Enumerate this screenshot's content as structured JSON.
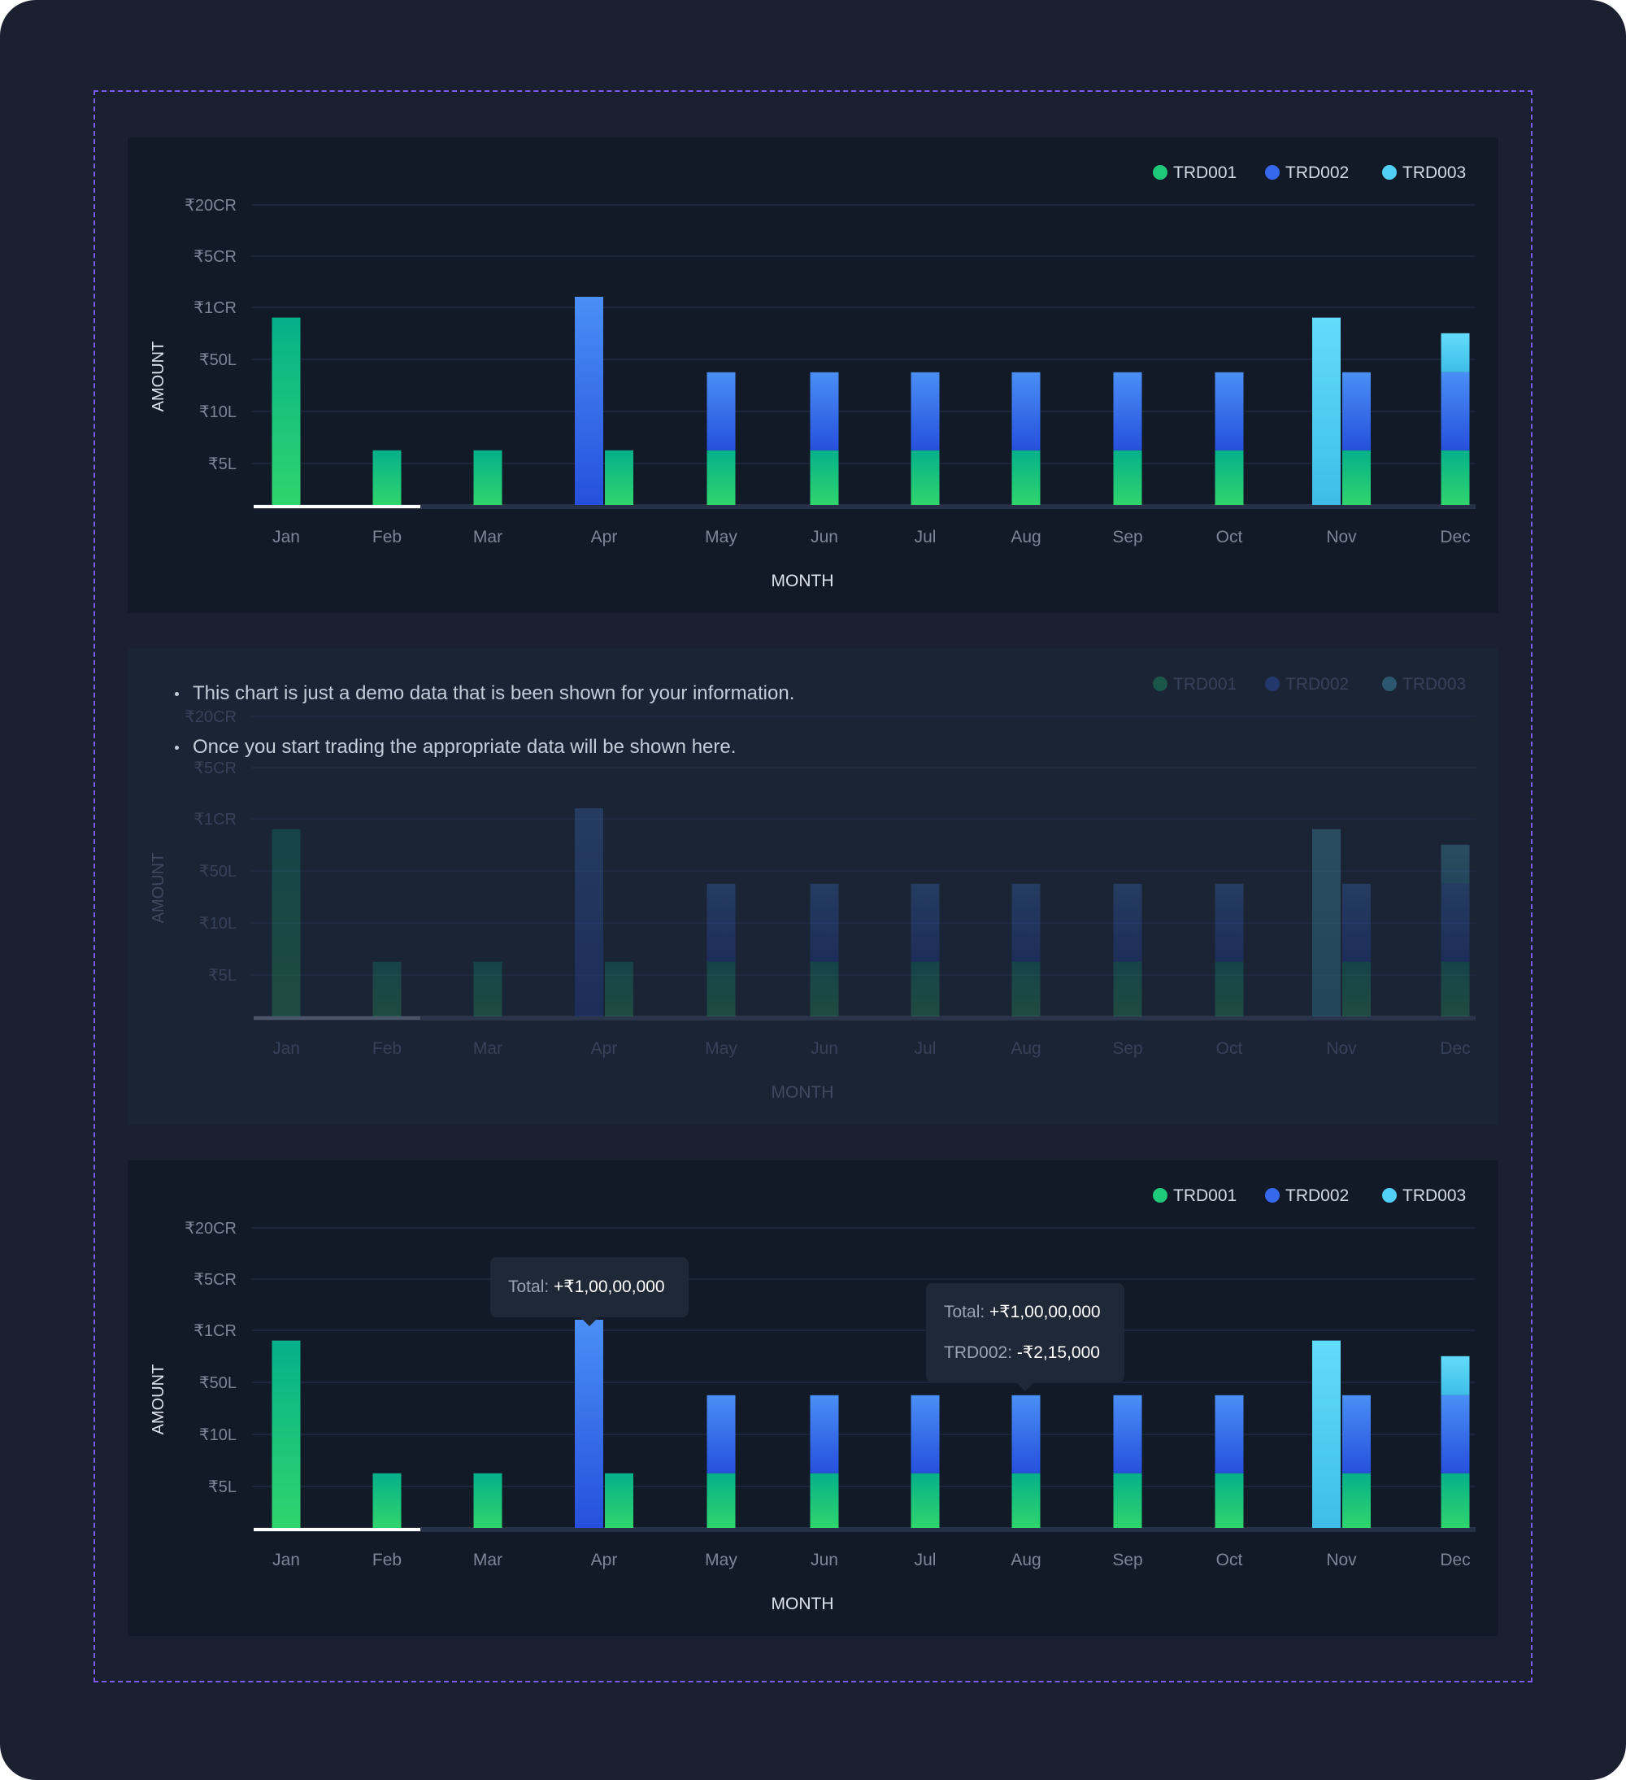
{
  "chart_data": [
    {
      "type": "bar",
      "panel": "chart-1",
      "categories": [
        "Jan",
        "Feb",
        "Mar",
        "Apr",
        "May",
        "Jun",
        "Jul",
        "Aug",
        "Sep",
        "Oct",
        "Nov",
        "Dec"
      ],
      "y_ticks": [
        "₹20CR",
        "₹5CR",
        "₹1CR",
        "₹50L",
        "₹10L",
        "₹5L"
      ],
      "ylabel": "AMOUNT",
      "xlabel": "MONTH",
      "legend_position": "top-right",
      "series": [
        {
          "name": "TRD001",
          "color": "#1ec97a"
        },
        {
          "name": "TRD002",
          "color": "#3568ec"
        },
        {
          "name": "TRD003",
          "color": "#52cff5"
        }
      ],
      "bars": [
        {
          "month": "Jan",
          "stack": [
            {
              "series": "TRD001",
              "from": 0,
              "to": 3.6
            }
          ]
        },
        {
          "month": "Feb",
          "stack": [
            {
              "series": "TRD001",
              "from": 0,
              "to": 1.05
            }
          ]
        },
        {
          "month": "Mar",
          "stack": [
            {
              "series": "TRD001",
              "from": 0,
              "to": 1.05
            }
          ]
        },
        {
          "month": "Apr",
          "stack": [
            {
              "series": "TRD002",
              "from": 0,
              "to": 4.0
            }
          ]
        },
        {
          "month": "Apr",
          "stack": [
            {
              "series": "TRD001",
              "from": 0,
              "to": 1.05
            }
          ]
        },
        {
          "month": "May",
          "stack": [
            {
              "series": "TRD001",
              "from": 0,
              "to": 1.05
            },
            {
              "series": "TRD002",
              "from": 1.05,
              "to": 2.55
            }
          ]
        },
        {
          "month": "Jun",
          "stack": [
            {
              "series": "TRD001",
              "from": 0,
              "to": 1.05
            },
            {
              "series": "TRD002",
              "from": 1.05,
              "to": 2.55
            }
          ]
        },
        {
          "month": "Jul",
          "stack": [
            {
              "series": "TRD001",
              "from": 0,
              "to": 1.05
            },
            {
              "series": "TRD002",
              "from": 1.05,
              "to": 2.55
            }
          ]
        },
        {
          "month": "Aug",
          "stack": [
            {
              "series": "TRD001",
              "from": 0,
              "to": 1.05
            },
            {
              "series": "TRD002",
              "from": 1.05,
              "to": 2.55
            }
          ]
        },
        {
          "month": "Sep",
          "stack": [
            {
              "series": "TRD001",
              "from": 0,
              "to": 1.05
            },
            {
              "series": "TRD002",
              "from": 1.05,
              "to": 2.55
            }
          ]
        },
        {
          "month": "Oct",
          "stack": [
            {
              "series": "TRD001",
              "from": 0,
              "to": 1.05
            },
            {
              "series": "TRD002",
              "from": 1.05,
              "to": 2.55
            }
          ]
        },
        {
          "month": "Nov",
          "stack": [
            {
              "series": "TRD003",
              "from": 0,
              "to": 3.6
            }
          ]
        },
        {
          "month": "Nov",
          "stack": [
            {
              "series": "TRD001",
              "from": 0,
              "to": 1.05
            },
            {
              "series": "TRD002",
              "from": 1.05,
              "to": 2.55
            }
          ]
        },
        {
          "month": "Dec",
          "stack": [
            {
              "series": "TRD001",
              "from": 0,
              "to": 1.05
            },
            {
              "series": "TRD002",
              "from": 1.05,
              "to": 2.55
            },
            {
              "series": "TRD003",
              "from": 2.55,
              "to": 3.3
            }
          ]
        }
      ]
    },
    {
      "type": "bar",
      "panel": "chart-2",
      "dimmed": true,
      "categories": [
        "Jan",
        "Feb",
        "Mar",
        "Apr",
        "May",
        "Jun",
        "Jul",
        "Aug",
        "Sep",
        "Oct",
        "Nov",
        "Dec"
      ],
      "y_ticks": [
        "₹20CR",
        "₹5CR",
        "₹1CR",
        "₹50L",
        "₹10L",
        "₹5L"
      ],
      "ylabel": "AMOUNT",
      "xlabel": "MONTH",
      "legend_position": "top-right",
      "series": [
        {
          "name": "TRD001",
          "color": "#1ec97a"
        },
        {
          "name": "TRD002",
          "color": "#3568ec"
        },
        {
          "name": "TRD003",
          "color": "#52cff5"
        }
      ],
      "notes": [
        "This chart is just a demo data that is been shown for your information.",
        "Once you start trading the appropriate data will be shown here."
      ],
      "bars": "same-as-chart-1"
    },
    {
      "type": "bar",
      "panel": "chart-3",
      "categories": [
        "Jan",
        "Feb",
        "Mar",
        "Apr",
        "May",
        "Jun",
        "Jul",
        "Aug",
        "Sep",
        "Oct",
        "Nov",
        "Dec"
      ],
      "y_ticks": [
        "₹20CR",
        "₹5CR",
        "₹1CR",
        "₹50L",
        "₹10L",
        "₹5L"
      ],
      "ylabel": "AMOUNT",
      "xlabel": "MONTH",
      "legend_position": "top-right",
      "series": [
        {
          "name": "TRD001",
          "color": "#1ec97a"
        },
        {
          "name": "TRD002",
          "color": "#3568ec"
        },
        {
          "name": "TRD003",
          "color": "#52cff5"
        }
      ],
      "bars": "same-as-chart-1",
      "tooltips": [
        {
          "month": "Apr",
          "rows": [
            {
              "label": "Total:",
              "value": "+₹1,00,00,000"
            }
          ]
        },
        {
          "month": "Aug",
          "rows": [
            {
              "label": "Total:",
              "value": "+₹1,00,00,000"
            },
            {
              "label": "TRD002:",
              "value": "-₹2,15,000"
            }
          ]
        }
      ]
    }
  ]
}
